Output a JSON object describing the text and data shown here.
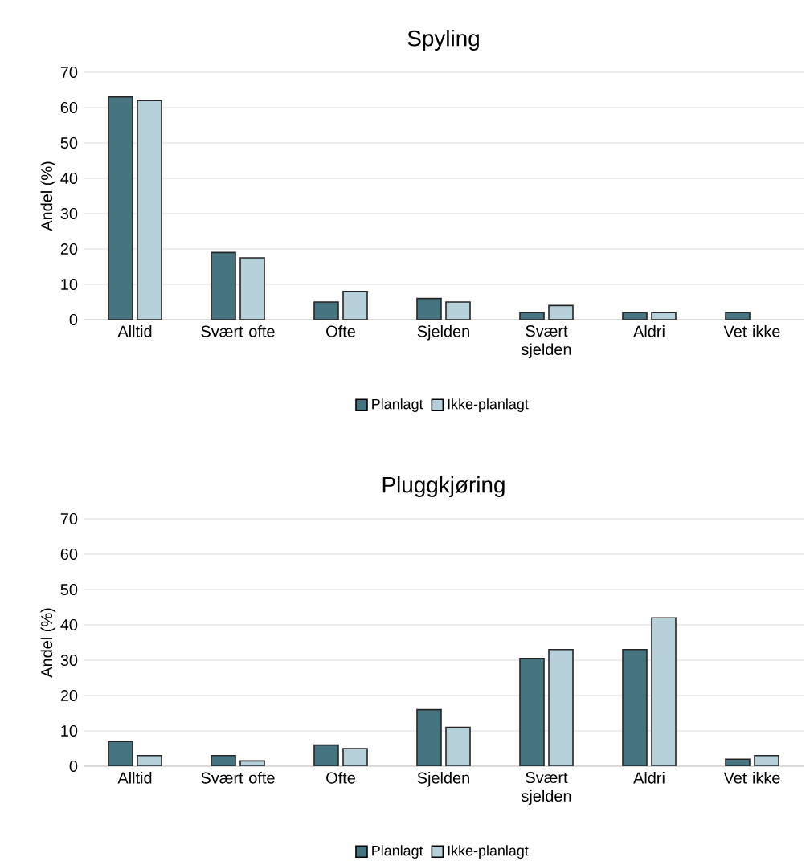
{
  "chart_data": [
    {
      "type": "bar",
      "title": "Spyling",
      "ylabel": "Andel (%)",
      "categories": [
        "Alltid",
        "Svært ofte",
        "Ofte",
        "Sjelden",
        "Svært sjelden",
        "Aldri",
        "Vet ikke"
      ],
      "series": [
        {
          "name": "Planlagt",
          "color": "#45737f",
          "values": [
            63,
            19,
            5,
            6,
            2,
            2,
            2
          ]
        },
        {
          "name": "Ikke-planlagt",
          "color": "#b6d0da",
          "values": [
            62,
            17.5,
            8,
            5,
            4,
            2,
            null
          ]
        }
      ],
      "ylim": [
        0,
        70
      ],
      "yticks": [
        0,
        10,
        20,
        30,
        40,
        50,
        60,
        70
      ],
      "grid": "y",
      "legend": "bottom"
    },
    {
      "type": "bar",
      "title": "Pluggkjøring",
      "ylabel": "Andel (%)",
      "categories": [
        "Alltid",
        "Svært ofte",
        "Ofte",
        "Sjelden",
        "Svært sjelden",
        "Aldri",
        "Vet ikke"
      ],
      "series": [
        {
          "name": "Planlagt",
          "color": "#45737f",
          "values": [
            7,
            3,
            6,
            16,
            30.5,
            33,
            2
          ]
        },
        {
          "name": "Ikke-planlagt",
          "color": "#b6d0da",
          "values": [
            3,
            1.5,
            5,
            11,
            33,
            42,
            3
          ]
        }
      ],
      "ylim": [
        0,
        70
      ],
      "yticks": [
        0,
        10,
        20,
        30,
        40,
        50,
        60,
        70
      ],
      "grid": "y",
      "legend": "bottom"
    }
  ]
}
